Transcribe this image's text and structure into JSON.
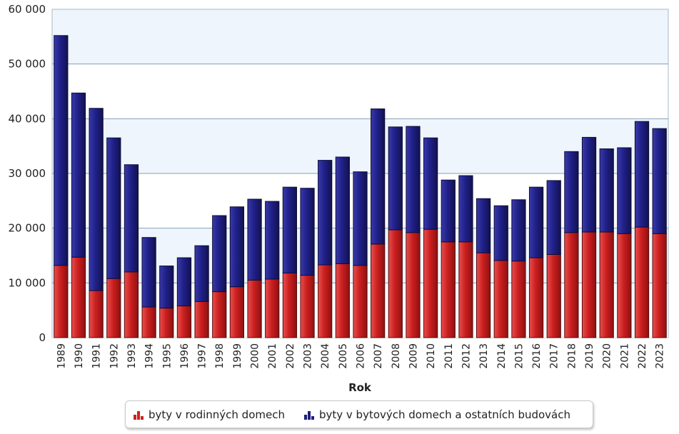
{
  "chart_data": {
    "type": "bar",
    "stacked": true,
    "xlabel": "Rok",
    "ylabel": "",
    "ylim": [
      0,
      60000
    ],
    "yticks": [
      0,
      10000,
      20000,
      30000,
      40000,
      50000,
      60000
    ],
    "ytick_labels": [
      "0",
      "10 000",
      "20 000",
      "30 000",
      "40 000",
      "50 000",
      "60 000"
    ],
    "grid": true,
    "legend_position": "bottom",
    "categories": [
      "1989",
      "1990",
      "1991",
      "1992",
      "1993",
      "1994",
      "1995",
      "1996",
      "1997",
      "1998",
      "1999",
      "2000",
      "2001",
      "2002",
      "2003",
      "2004",
      "2005",
      "2006",
      "2007",
      "2008",
      "2009",
      "2010",
      "2011",
      "2012",
      "2013",
      "2014",
      "2015",
      "2016",
      "2017",
      "2018",
      "2019",
      "2020",
      "2021",
      "2022",
      "2023"
    ],
    "series": [
      {
        "name": "byty v rodinných domech",
        "color": "#cc2222",
        "values": [
          13200,
          14700,
          8600,
          10800,
          12000,
          5600,
          5400,
          5800,
          6600,
          8400,
          9300,
          10500,
          10700,
          11800,
          11400,
          13300,
          13500,
          13200,
          17100,
          19700,
          19200,
          19800,
          17500,
          17500,
          15500,
          14100,
          14000,
          14600,
          15200,
          19200,
          19300,
          19300,
          19000,
          20200,
          19000
        ]
      },
      {
        "name": "byty v bytových domech a ostatních budovách",
        "color": "#1f1f7a",
        "values": [
          42000,
          30000,
          33300,
          25700,
          19600,
          12700,
          7700,
          8800,
          10200,
          13900,
          14600,
          14800,
          14200,
          15700,
          15900,
          19100,
          19500,
          17100,
          24700,
          18800,
          19400,
          16700,
          11300,
          12100,
          9900,
          10000,
          11200,
          12900,
          13500,
          14800,
          17300,
          15200,
          15700,
          19300,
          19200
        ]
      }
    ]
  }
}
